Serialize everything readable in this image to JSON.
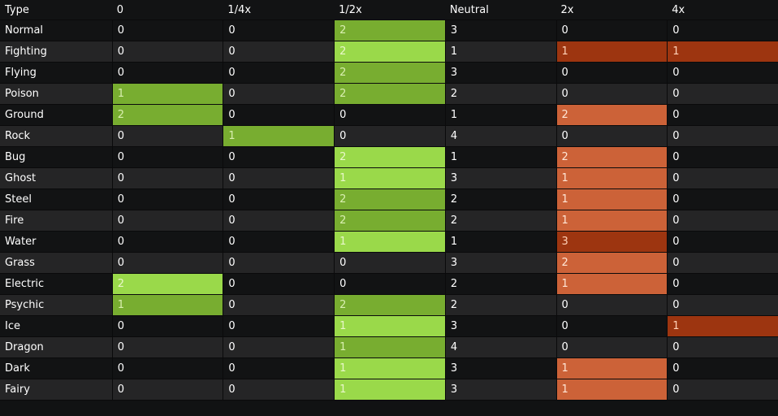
{
  "headers": [
    "Type",
    "0",
    "1/4x",
    "1/2x",
    "Neutral",
    "2x",
    "4x"
  ],
  "rows": [
    {
      "type": "Normal",
      "values": [
        "0",
        "0",
        "2",
        "3",
        "0",
        "0"
      ],
      "shade": [
        "",
        "",
        "g-dark",
        "",
        "",
        ""
      ]
    },
    {
      "type": "Fighting",
      "values": [
        "0",
        "0",
        "2",
        "1",
        "1",
        "1"
      ],
      "shade": [
        "",
        "",
        "g-light",
        "",
        "r-dark",
        "r-dark"
      ]
    },
    {
      "type": "Flying",
      "values": [
        "0",
        "0",
        "2",
        "3",
        "0",
        "0"
      ],
      "shade": [
        "",
        "",
        "g-dark",
        "",
        "",
        ""
      ]
    },
    {
      "type": "Poison",
      "values": [
        "1",
        "0",
        "2",
        "2",
        "0",
        "0"
      ],
      "shade": [
        "g-dark",
        "",
        "g-dark",
        "",
        "",
        ""
      ]
    },
    {
      "type": "Ground",
      "values": [
        "2",
        "0",
        "0",
        "1",
        "2",
        "0"
      ],
      "shade": [
        "g-dark",
        "",
        "",
        "",
        "r-light",
        ""
      ]
    },
    {
      "type": "Rock",
      "values": [
        "0",
        "1",
        "0",
        "4",
        "0",
        "0"
      ],
      "shade": [
        "",
        "g-dark",
        "",
        "",
        "",
        ""
      ]
    },
    {
      "type": "Bug",
      "values": [
        "0",
        "0",
        "2",
        "1",
        "2",
        "0"
      ],
      "shade": [
        "",
        "",
        "g-light",
        "",
        "r-light",
        ""
      ]
    },
    {
      "type": "Ghost",
      "values": [
        "0",
        "0",
        "1",
        "3",
        "1",
        "0"
      ],
      "shade": [
        "",
        "",
        "g-light",
        "",
        "r-light",
        ""
      ]
    },
    {
      "type": "Steel",
      "values": [
        "0",
        "0",
        "2",
        "2",
        "1",
        "0"
      ],
      "shade": [
        "",
        "",
        "g-dark",
        "",
        "r-light",
        ""
      ]
    },
    {
      "type": "Fire",
      "values": [
        "0",
        "0",
        "2",
        "2",
        "1",
        "0"
      ],
      "shade": [
        "",
        "",
        "g-dark",
        "",
        "r-light",
        ""
      ]
    },
    {
      "type": "Water",
      "values": [
        "0",
        "0",
        "1",
        "1",
        "3",
        "0"
      ],
      "shade": [
        "",
        "",
        "g-light",
        "",
        "r-dark",
        ""
      ]
    },
    {
      "type": "Grass",
      "values": [
        "0",
        "0",
        "0",
        "3",
        "2",
        "0"
      ],
      "shade": [
        "",
        "",
        "",
        "",
        "r-light",
        ""
      ]
    },
    {
      "type": "Electric",
      "values": [
        "2",
        "0",
        "0",
        "2",
        "1",
        "0"
      ],
      "shade": [
        "g-light",
        "",
        "",
        "",
        "r-light",
        ""
      ]
    },
    {
      "type": "Psychic",
      "values": [
        "1",
        "0",
        "2",
        "2",
        "0",
        "0"
      ],
      "shade": [
        "g-dark",
        "",
        "g-dark",
        "",
        "",
        ""
      ]
    },
    {
      "type": "Ice",
      "values": [
        "0",
        "0",
        "1",
        "3",
        "0",
        "1"
      ],
      "shade": [
        "",
        "",
        "g-light",
        "",
        "",
        "r-dark"
      ]
    },
    {
      "type": "Dragon",
      "values": [
        "0",
        "0",
        "1",
        "4",
        "0",
        "0"
      ],
      "shade": [
        "",
        "",
        "g-dark",
        "",
        "",
        ""
      ]
    },
    {
      "type": "Dark",
      "values": [
        "0",
        "0",
        "1",
        "3",
        "1",
        "0"
      ],
      "shade": [
        "",
        "",
        "g-light",
        "",
        "r-light",
        ""
      ]
    },
    {
      "type": "Fairy",
      "values": [
        "0",
        "0",
        "1",
        "3",
        "1",
        "0"
      ],
      "shade": [
        "",
        "",
        "g-light",
        "",
        "r-light",
        ""
      ]
    }
  ],
  "colors": {
    "green_light": "#9ad94a",
    "green_dark": "#78ad30",
    "red_light": "#cc6238",
    "red_dark": "#9d3510",
    "row_dark": "#121314",
    "row_alt": "#252526"
  }
}
